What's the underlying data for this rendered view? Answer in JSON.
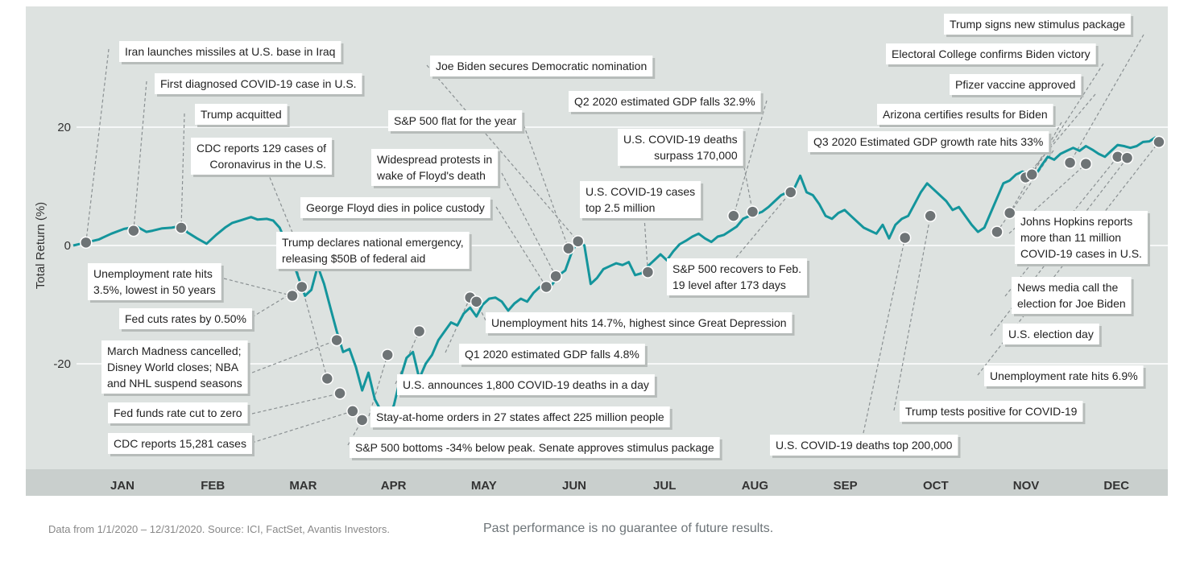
{
  "chart_data": {
    "type": "line",
    "title": "",
    "xlabel": "",
    "ylabel": "Total Return (%)",
    "ylim": [
      -38,
      40
    ],
    "y_ticks": [
      "20",
      "0",
      "-20"
    ],
    "y_tick_values": [
      20,
      0,
      -20
    ],
    "grid": "horizontal",
    "months": [
      "JAN",
      "FEB",
      "MAR",
      "APR",
      "MAY",
      "JUN",
      "JUL",
      "AUG",
      "SEP",
      "OCT",
      "NOV",
      "DEC"
    ],
    "series": [
      {
        "color": "#14959c",
        "points": [
          [
            0,
            0
          ],
          [
            4,
            0.5
          ],
          [
            8,
            1.0
          ],
          [
            12,
            2.0
          ],
          [
            16,
            2.8
          ],
          [
            20,
            3.2
          ],
          [
            23,
            2.3
          ],
          [
            25,
            2.5
          ],
          [
            28,
            2.9
          ],
          [
            31,
            3.0
          ],
          [
            34,
            3.3
          ],
          [
            36,
            2.2
          ],
          [
            39,
            1.2
          ],
          [
            42,
            0.3
          ],
          [
            45,
            1.8
          ],
          [
            48,
            3.1
          ],
          [
            50,
            3.8
          ],
          [
            53,
            4.3
          ],
          [
            56,
            4.8
          ],
          [
            58,
            4.4
          ],
          [
            61,
            4.5
          ],
          [
            63,
            4.2
          ],
          [
            65,
            3.0
          ],
          [
            67,
            0.5
          ],
          [
            69,
            -2.5
          ],
          [
            71,
            -5.5
          ],
          [
            73,
            -8.5
          ],
          [
            75,
            -7.5
          ],
          [
            77,
            -3.5
          ],
          [
            79,
            -6.5
          ],
          [
            81,
            -10.5
          ],
          [
            83,
            -14.5
          ],
          [
            85,
            -18.0
          ],
          [
            87,
            -17.5
          ],
          [
            89,
            -20.5
          ],
          [
            91,
            -24.5
          ],
          [
            93,
            -21.5
          ],
          [
            95,
            -26.0
          ],
          [
            97,
            -28.0
          ],
          [
            99,
            -29.2
          ],
          [
            101,
            -27.0
          ],
          [
            103,
            -22.5
          ],
          [
            105,
            -19.0
          ],
          [
            107,
            -18.0
          ],
          [
            109,
            -22.5
          ],
          [
            111,
            -20.0
          ],
          [
            113,
            -18.5
          ],
          [
            115,
            -16.0
          ],
          [
            117,
            -14.5
          ],
          [
            119,
            -13.0
          ],
          [
            121,
            -13.5
          ],
          [
            123,
            -11.5
          ],
          [
            125,
            -10.5
          ],
          [
            127,
            -12.0
          ],
          [
            129,
            -10.0
          ],
          [
            131,
            -9.0
          ],
          [
            133,
            -8.8
          ],
          [
            135,
            -9.5
          ],
          [
            137,
            -11.0
          ],
          [
            139,
            -9.8
          ],
          [
            141,
            -9.0
          ],
          [
            143,
            -9.5
          ],
          [
            145,
            -8.0
          ],
          [
            147,
            -7.0
          ],
          [
            149,
            -7.8
          ],
          [
            151,
            -6.5
          ],
          [
            153,
            -5.0
          ],
          [
            155,
            -4.2
          ],
          [
            157,
            -1.2
          ],
          [
            159,
            0.8
          ],
          [
            161,
            0.0
          ],
          [
            163,
            -6.5
          ],
          [
            165,
            -5.5
          ],
          [
            167,
            -4.0
          ],
          [
            169,
            -3.5
          ],
          [
            171,
            -3.0
          ],
          [
            173,
            -3.3
          ],
          [
            175,
            -2.8
          ],
          [
            177,
            -5.0
          ],
          [
            179,
            -4.7
          ],
          [
            181,
            -3.5
          ],
          [
            183,
            -2.5
          ],
          [
            185,
            -1.5
          ],
          [
            187,
            -2.5
          ],
          [
            189,
            -1.0
          ],
          [
            191,
            0.2
          ],
          [
            193,
            0.8
          ],
          [
            195,
            1.5
          ],
          [
            197,
            2.0
          ],
          [
            199,
            1.2
          ],
          [
            201,
            0.6
          ],
          [
            203,
            1.5
          ],
          [
            205,
            1.8
          ],
          [
            207,
            2.5
          ],
          [
            209,
            3.2
          ],
          [
            211,
            4.5
          ],
          [
            213,
            5.0
          ],
          [
            215,
            5.3
          ],
          [
            217,
            5.7
          ],
          [
            219,
            6.5
          ],
          [
            221,
            7.5
          ],
          [
            223,
            8.5
          ],
          [
            225,
            9.0
          ],
          [
            227,
            9.5
          ],
          [
            229,
            11.8
          ],
          [
            231,
            9.0
          ],
          [
            233,
            8.5
          ],
          [
            235,
            7.0
          ],
          [
            237,
            5.0
          ],
          [
            239,
            4.5
          ],
          [
            241,
            5.5
          ],
          [
            243,
            6.0
          ],
          [
            245,
            5.0
          ],
          [
            247,
            4.0
          ],
          [
            249,
            3.0
          ],
          [
            251,
            2.5
          ],
          [
            253,
            2.0
          ],
          [
            255,
            3.5
          ],
          [
            257,
            1.2
          ],
          [
            259,
            3.5
          ],
          [
            261,
            4.5
          ],
          [
            263,
            5.0
          ],
          [
            265,
            7.0
          ],
          [
            267,
            9.0
          ],
          [
            269,
            10.5
          ],
          [
            271,
            9.5
          ],
          [
            273,
            8.5
          ],
          [
            275,
            7.5
          ],
          [
            277,
            6.0
          ],
          [
            279,
            6.5
          ],
          [
            281,
            5.0
          ],
          [
            283,
            3.5
          ],
          [
            285,
            2.3
          ],
          [
            287,
            3.0
          ],
          [
            289,
            5.5
          ],
          [
            291,
            8.0
          ],
          [
            293,
            10.5
          ],
          [
            295,
            11.0
          ],
          [
            297,
            12.0
          ],
          [
            299,
            12.5
          ],
          [
            301,
            12.0
          ],
          [
            303,
            11.8
          ],
          [
            305,
            13.5
          ],
          [
            307,
            15.0
          ],
          [
            309,
            14.5
          ],
          [
            311,
            15.5
          ],
          [
            313,
            16.0
          ],
          [
            315,
            16.5
          ],
          [
            317,
            16.0
          ],
          [
            319,
            16.8
          ],
          [
            321,
            16.2
          ],
          [
            323,
            15.5
          ],
          [
            325,
            15.0
          ],
          [
            327,
            16.0
          ],
          [
            329,
            17.0
          ],
          [
            331,
            16.8
          ],
          [
            333,
            16.5
          ],
          [
            335,
            16.8
          ],
          [
            337,
            17.5
          ],
          [
            339,
            17.6
          ],
          [
            341,
            18.3
          ]
        ]
      }
    ],
    "markers": [
      [
        4,
        0.5
      ],
      [
        19,
        2.5
      ],
      [
        34,
        3.0
      ],
      [
        69,
        -8.5
      ],
      [
        72,
        -7.0
      ],
      [
        73,
        -3.0
      ],
      [
        80,
        -22.5
      ],
      [
        83,
        -16.0
      ],
      [
        84,
        -25.0
      ],
      [
        88,
        -28.0
      ],
      [
        91,
        -29.5
      ],
      [
        99,
        -18.5
      ],
      [
        109,
        -14.5
      ],
      [
        125,
        -8.8
      ],
      [
        127,
        -9.5
      ],
      [
        149,
        -7.0
      ],
      [
        152,
        -5.2
      ],
      [
        156,
        -0.5
      ],
      [
        159,
        0.7
      ],
      [
        181,
        -4.5
      ],
      [
        208,
        5.0
      ],
      [
        214,
        5.7
      ],
      [
        226,
        9.0
      ],
      [
        262,
        1.3
      ],
      [
        270,
        5.0
      ],
      [
        291,
        2.3
      ],
      [
        295,
        5.5
      ],
      [
        300,
        11.5
      ],
      [
        302,
        12.0
      ],
      [
        314,
        14.0
      ],
      [
        319,
        13.8
      ],
      [
        329,
        15.0
      ],
      [
        332,
        14.8
      ],
      [
        342,
        17.5
      ]
    ],
    "annotations": [
      {
        "text": [
          "Iran launches missiles at U.S. base in Iraq"
        ]
      },
      {
        "text": [
          "First diagnosed COVID-19 case in U.S."
        ]
      },
      {
        "text": [
          "Trump acquitted"
        ]
      },
      {
        "text": [
          "CDC reports 129 cases of",
          "Coronavirus in the U.S."
        ]
      },
      {
        "text": [
          "Trump declares national emergency,",
          "releasing $50B of federal aid"
        ]
      },
      {
        "text": [
          "Unemployment rate hits",
          "3.5%, lowest in 50 years"
        ]
      },
      {
        "text": [
          "Fed cuts rates by 0.50%"
        ]
      },
      {
        "text": [
          "March Madness cancelled;",
          "Disney World closes; NBA",
          "and NHL suspend seasons"
        ]
      },
      {
        "text": [
          "Fed funds rate cut to zero"
        ]
      },
      {
        "text": [
          "CDC reports 15,281 cases"
        ]
      },
      {
        "text": [
          "S&P 500 bottoms  -34% below peak. Senate approves stimulus package"
        ]
      },
      {
        "text": [
          "Stay-at-home orders in 27 states affect 225 million people"
        ]
      },
      {
        "text": [
          "U.S. announces 1,800 COVID-19 deaths in a day"
        ]
      },
      {
        "text": [
          "Q1 2020 estimated GDP falls 4.8%"
        ]
      },
      {
        "text": [
          "Unemployment hits 14.7%, highest since Great Depression"
        ]
      },
      {
        "text": [
          "George Floyd dies in police custody"
        ]
      },
      {
        "text": [
          "Widespread protests in",
          "wake of Floyd's death"
        ]
      },
      {
        "text": [
          "S&P 500 flat for the year"
        ]
      },
      {
        "text": [
          "Joe Biden secures Democratic nomination"
        ]
      },
      {
        "text": [
          "U.S. COVID-19 cases",
          "top 2.5 million"
        ]
      },
      {
        "text": [
          "Q2 2020 estimated GDP falls 32.9%"
        ]
      },
      {
        "text": [
          "U.S. COVID-19 deaths",
          "surpass 170,000"
        ]
      },
      {
        "text": [
          "S&P 500 recovers to Feb.",
          "19 level after 173 days"
        ]
      },
      {
        "text": [
          "U.S. COVID-19 deaths top 200,000"
        ]
      },
      {
        "text": [
          "Trump tests positive for COVID-19"
        ]
      },
      {
        "text": [
          "Q3 2020 Estimated GDP growth rate hits 33%"
        ]
      },
      {
        "text": [
          "Arizona certifies results for Biden"
        ]
      },
      {
        "text": [
          "Pfizer vaccine approved"
        ]
      },
      {
        "text": [
          "Electoral College confirms Biden victory"
        ]
      },
      {
        "text": [
          "Trump signs new stimulus package"
        ]
      },
      {
        "text": [
          "Johns Hopkins reports",
          "more than 11  million",
          "COVID-19 cases in U.S."
        ]
      },
      {
        "text": [
          "News media call the",
          "election for Joe Biden"
        ]
      },
      {
        "text": [
          "U.S. election day"
        ]
      },
      {
        "text": [
          "Unemployment rate hits 6.9%"
        ]
      }
    ]
  },
  "footer": {
    "source": "Data from 1/1/2020 – 12/31/2020. Source: ICI, FactSet, Avantis Investors.",
    "note": "Past performance is no guarantee of future results."
  }
}
